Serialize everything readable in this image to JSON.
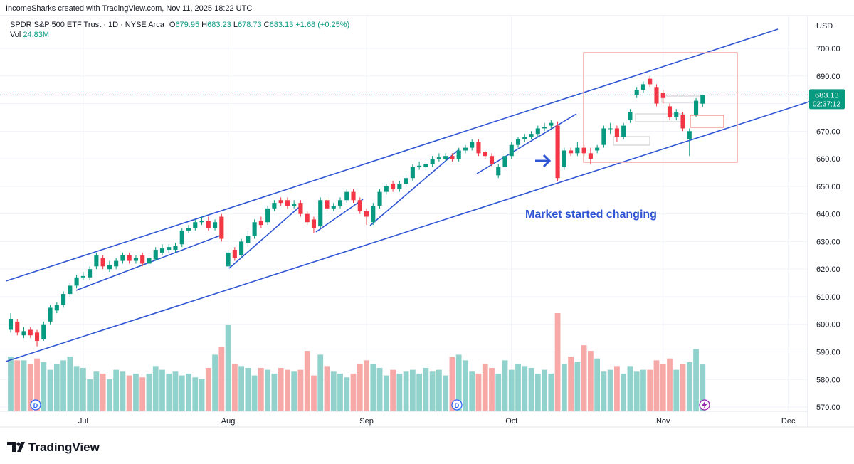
{
  "header": {
    "attribution": "IncomeSharks created with TradingView.com, Nov 11, 2025 18:22 UTC",
    "symbol": "SPDR S&P 500 ETF Trust · 1D · NYSE Arca",
    "ohlc_labels": [
      "O",
      "H",
      "L",
      "C"
    ],
    "change": "+1.68 (+0.25%)",
    "vol_label": "Vol",
    "vol_value": "24.83M",
    "currency": "USD",
    "countdown": "02:37:12",
    "logo": "TradingView"
  },
  "chart_data": {
    "type": "candlestick",
    "annotations": [
      "Market started changing"
    ],
    "up_color": "#089981",
    "down_color": "#f23645",
    "volume_up_color": "#92d2cc",
    "volume_down_color": "#f7a9a7",
    "grid": true,
    "xlim": [
      -1.62,
      120.95
    ],
    "xticks": [
      {
        "value": 11,
        "label": "Jul"
      },
      {
        "value": 33,
        "label": "Aug"
      },
      {
        "value": 54,
        "label": "Sep"
      },
      {
        "value": 76,
        "label": "Oct"
      },
      {
        "value": 99,
        "label": "Nov"
      },
      {
        "value": 118,
        "label": "Dec"
      }
    ],
    "ylim": [
      568.46,
      717.54
    ],
    "yticks": [
      {
        "value": 570,
        "label": "570.00"
      },
      {
        "value": 580,
        "label": "580.00"
      },
      {
        "value": 590,
        "label": "590.00"
      },
      {
        "value": 600,
        "label": "600.00"
      },
      {
        "value": 610,
        "label": "610.00"
      },
      {
        "value": 620,
        "label": "620.00"
      },
      {
        "value": 630,
        "label": "630.00"
      },
      {
        "value": 640,
        "label": "640.00"
      },
      {
        "value": 650,
        "label": "650.00"
      },
      {
        "value": 660,
        "label": "660.00"
      },
      {
        "value": 670,
        "label": "670.00"
      },
      {
        "value": 680,
        "label": "680.00"
      },
      {
        "value": 690,
        "label": "690.00"
      },
      {
        "value": 700,
        "label": "700.00"
      }
    ],
    "open": [
      598,
      601,
      596,
      598,
      597,
      594.5,
      601,
      605,
      607,
      611,
      614,
      617,
      617,
      621,
      624,
      620,
      621,
      623,
      625,
      623,
      625,
      622,
      623.5,
      626,
      627,
      627,
      629,
      634,
      635,
      637,
      637.5,
      635,
      639,
      621,
      627,
      625,
      629.5,
      632,
      637.5,
      637,
      642,
      645,
      645,
      643,
      644,
      640,
      638,
      635.5,
      645,
      642,
      643,
      645,
      648,
      645,
      641,
      637,
      643,
      648,
      651,
      649,
      651,
      653,
      657,
      657,
      658,
      660,
      660,
      661,
      660,
      663,
      664,
      666,
      662.5,
      661,
      654,
      657,
      661,
      665,
      667,
      668,
      669,
      671,
      672,
      672,
      657,
      663,
      662,
      664,
      662,
      663,
      665,
      671,
      671,
      668,
      674,
      683,
      685,
      689,
      686,
      684,
      679,
      675,
      676,
      667,
      676,
      679.95
    ],
    "high": [
      604,
      602,
      599,
      599,
      598,
      601,
      607,
      608,
      612,
      615,
      618,
      619,
      621,
      626,
      625,
      623,
      624,
      626,
      626,
      625,
      626,
      625,
      628,
      629,
      629,
      629.5,
      635,
      636,
      638,
      639,
      639,
      638,
      640,
      627,
      628,
      631,
      634,
      638,
      639,
      643,
      645,
      646,
      646,
      645,
      645,
      641,
      639,
      646,
      646,
      644,
      646,
      649,
      649,
      646,
      642,
      644,
      649,
      651,
      652,
      652,
      654,
      658,
      659,
      659,
      661,
      662,
      662,
      662,
      664,
      665,
      667,
      667,
      663,
      662,
      658,
      662,
      666,
      668,
      669,
      670,
      672,
      673,
      674,
      673.5,
      664,
      664,
      666,
      665,
      664,
      665,
      672,
      673,
      672,
      673,
      678,
      686,
      688,
      690,
      687,
      685,
      680,
      678,
      677,
      671,
      682,
      683.23
    ],
    "low": [
      597,
      596,
      595,
      595,
      592,
      594,
      600,
      604,
      606,
      610,
      613,
      616,
      616,
      620,
      620,
      619,
      620,
      622,
      622,
      622,
      621,
      621,
      623,
      625,
      626,
      626,
      628,
      633,
      634,
      636,
      634,
      634,
      630,
      620,
      623,
      624,
      628,
      631,
      635,
      636,
      641,
      643,
      642,
      642,
      639,
      636,
      633,
      635,
      641,
      641,
      642,
      644,
      644,
      640,
      636,
      636,
      642,
      647,
      648,
      648,
      650,
      652,
      656,
      656,
      657,
      659,
      659,
      659,
      659,
      662,
      663,
      661,
      660,
      657,
      653,
      656,
      660,
      664,
      666,
      667,
      668,
      670,
      671,
      652,
      656,
      661,
      661,
      661,
      658,
      662,
      664,
      669,
      666,
      667,
      673,
      682,
      684,
      686,
      679,
      680,
      674,
      674,
      670,
      661,
      675,
      678.73
    ],
    "close": [
      602,
      597,
      597.5,
      596,
      594,
      600,
      606,
      607,
      611,
      614,
      617,
      617.5,
      620,
      625,
      621,
      621.5,
      623,
      625,
      623,
      624,
      622,
      624,
      627,
      627.5,
      628,
      628.5,
      634,
      635,
      637,
      637.5,
      635,
      637,
      631,
      626,
      624,
      630,
      632,
      637,
      636,
      642,
      644,
      644,
      643,
      643.5,
      640,
      637,
      635,
      645,
      642,
      643,
      645,
      648,
      645,
      641,
      639,
      643,
      648,
      650,
      649,
      651,
      653,
      657,
      657.5,
      658,
      660,
      660.5,
      661,
      660,
      663,
      664,
      666,
      662,
      661,
      658,
      657,
      661,
      665,
      667,
      668,
      669,
      671,
      671.5,
      673,
      653,
      663,
      662,
      664,
      662,
      660,
      664,
      671,
      671,
      668,
      672,
      677,
      685,
      687,
      687,
      680,
      682,
      675,
      677,
      671,
      670,
      681,
      683.13
    ],
    "volume": [
      29,
      27,
      27,
      25,
      28,
      26,
      22,
      25,
      27,
      29,
      24,
      23,
      17,
      21,
      20,
      17,
      22,
      21,
      19,
      20,
      18,
      20,
      24,
      22,
      20,
      21,
      19,
      20,
      18,
      17,
      23,
      30,
      34,
      46,
      25,
      24,
      23,
      19,
      23,
      22,
      20,
      23,
      22,
      21,
      22,
      32,
      19,
      30,
      24,
      21,
      20,
      18,
      20,
      25,
      27,
      25,
      23,
      19,
      22,
      20,
      21,
      22,
      20,
      23,
      21,
      22,
      19,
      29,
      30,
      27,
      21,
      20,
      25,
      23,
      20,
      27,
      22,
      25,
      24,
      23,
      20,
      22,
      20,
      52,
      25,
      29,
      26,
      35,
      32,
      28,
      21,
      22,
      24,
      20,
      24,
      21,
      22,
      22,
      27,
      25,
      28,
      22,
      25,
      26,
      33,
      24.83
    ]
  }
}
